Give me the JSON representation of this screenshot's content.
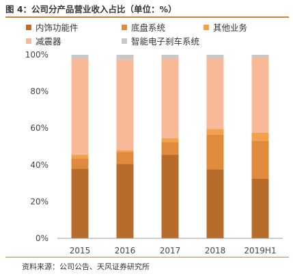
{
  "title": "图 4：公司分产品营业收入占比（单位：%）",
  "source": "资料来源：公司公告、天风证券研究所",
  "chart_data": {
    "type": "bar",
    "stacked": true,
    "categories": [
      "2015",
      "2016",
      "2017",
      "2018",
      "2019H1"
    ],
    "series": [
      {
        "name": "内饰功能件",
        "color": "#b86c2c",
        "values": [
          38,
          40.5,
          45.5,
          37.5,
          32.5
        ]
      },
      {
        "name": "底盘系统",
        "color": "#e08a3e",
        "values": [
          5.5,
          6.5,
          7,
          19,
          20.5
        ]
      },
      {
        "name": "其他业务",
        "color": "#f2a04d",
        "values": [
          2,
          1,
          2,
          3,
          4.5
        ]
      },
      {
        "name": "减震器",
        "color": "#f7b997",
        "values": [
          52.5,
          49.5,
          43.5,
          38.5,
          41
        ]
      },
      {
        "name": "智能电子刹车系统",
        "color": "#c8c8c8",
        "values": [
          2,
          2.5,
          2,
          2,
          1.5
        ]
      }
    ],
    "y_ticks": [
      "0%",
      "20%",
      "40%",
      "60%",
      "80%",
      "100%"
    ],
    "ylim": [
      0,
      100
    ],
    "grid": false,
    "legend": "top"
  }
}
